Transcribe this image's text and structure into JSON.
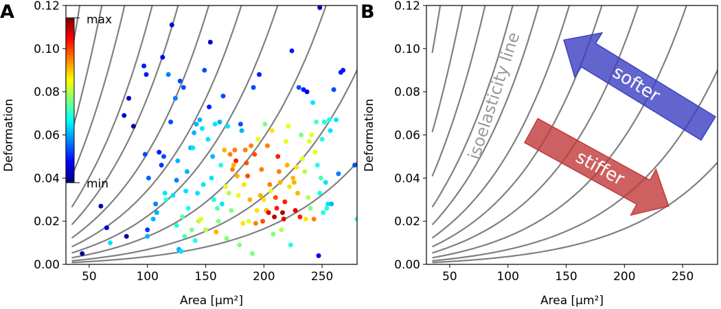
{
  "colors": {
    "isoline": "#7f7f7f",
    "softer_arrow": "#3b3fc0",
    "stiffer_arrow": "#c0393b"
  },
  "chart_data": [
    {
      "panel_label": "A",
      "type": "scatter",
      "xlabel": "Area [µm²]",
      "ylabel": "Deformation",
      "xlim": [
        30,
        280
      ],
      "ylim": [
        0,
        0.12
      ],
      "xticks": [
        "50",
        "100",
        "150",
        "200",
        "250"
      ],
      "xtick_values": [
        50,
        100,
        150,
        200,
        250
      ],
      "yticks": [
        "0.00",
        "0.02",
        "0.04",
        "0.06",
        "0.08",
        "0.10",
        "0.12"
      ],
      "ytick_values": [
        0,
        0.02,
        0.04,
        0.06,
        0.08,
        0.1,
        0.12
      ],
      "grid": false,
      "colorbar": {
        "max_label": "max",
        "min_label": "min",
        "colormap": "jet"
      },
      "isoelasticity_k": [
        4.2e-05,
        8e-05,
        0.00015,
        0.00026,
        0.0004,
        0.0006,
        0.0009,
        0.0013,
        0.002,
        0.003,
        0.0048
      ],
      "points": [
        [
          44,
          0.005,
          0.02
        ],
        [
          60,
          0.027,
          0.05
        ],
        [
          65,
          0.017,
          0.08
        ],
        [
          80,
          0.069,
          0.08
        ],
        [
          82,
          0.013,
          0.04
        ],
        [
          84,
          0.077,
          0.06
        ],
        [
          88,
          0.064,
          0.03
        ],
        [
          97,
          0.092,
          0.15
        ],
        [
          99,
          0.088,
          0.15
        ],
        [
          98,
          0.051,
          0.2
        ],
        [
          100,
          0.016,
          0.18
        ],
        [
          101,
          0.04,
          0.22
        ],
        [
          105,
          0.021,
          0.3
        ],
        [
          107,
          0.028,
          0.25
        ],
        [
          108,
          0.024,
          0.3
        ],
        [
          110,
          0.052,
          0.15
        ],
        [
          112,
          0.046,
          0.18
        ],
        [
          113,
          0.096,
          0.12
        ],
        [
          114,
          0.05,
          0.2
        ],
        [
          115,
          0.033,
          0.35
        ],
        [
          116,
          0.03,
          0.4
        ],
        [
          118,
          0.088,
          0.25
        ],
        [
          120,
          0.066,
          0.2
        ],
        [
          121,
          0.111,
          0.08
        ],
        [
          122,
          0.032,
          0.35
        ],
        [
          124,
          0.077,
          0.25
        ],
        [
          125,
          0.039,
          0.25
        ],
        [
          125,
          0.018,
          0.4
        ],
        [
          126,
          0.048,
          0.3
        ],
        [
          127,
          0.007,
          0.3
        ],
        [
          128,
          0.085,
          0.2
        ],
        [
          129,
          0.006,
          0.35
        ],
        [
          130,
          0.022,
          0.45
        ],
        [
          131,
          0.082,
          0.2
        ],
        [
          132,
          0.013,
          0.45
        ],
        [
          133,
          0.034,
          0.35
        ],
        [
          134,
          0.043,
          0.3
        ],
        [
          135,
          0.026,
          0.4
        ],
        [
          137,
          0.054,
          0.3
        ],
        [
          138,
          0.016,
          0.5
        ],
        [
          139,
          0.054,
          0.35
        ],
        [
          140,
          0.061,
          0.3
        ],
        [
          141,
          0.011,
          0.4
        ],
        [
          142,
          0.065,
          0.3
        ],
        [
          143,
          0.033,
          0.35
        ],
        [
          144,
          0.02,
          0.55
        ],
        [
          145,
          0.067,
          0.3
        ],
        [
          146,
          0.021,
          0.6
        ],
        [
          147,
          0.063,
          0.35
        ],
        [
          148,
          0.037,
          0.35
        ],
        [
          149,
          0.09,
          0.2
        ],
        [
          150,
          0.016,
          0.55
        ],
        [
          152,
          0.058,
          0.35
        ],
        [
          153,
          0.073,
          0.15
        ],
        [
          154,
          0.103,
          0.08
        ],
        [
          155,
          0.04,
          0.35
        ],
        [
          156,
          0.05,
          0.3
        ],
        [
          157,
          0.03,
          0.4
        ],
        [
          158,
          0.065,
          0.35
        ],
        [
          159,
          0.015,
          0.7
        ],
        [
          160,
          0.026,
          0.45
        ],
        [
          161,
          0.02,
          0.5
        ],
        [
          162,
          0.066,
          0.3
        ],
        [
          163,
          0.046,
          0.4
        ],
        [
          164,
          0.028,
          0.35
        ],
        [
          165,
          0.078,
          0.2
        ],
        [
          166,
          0.053,
          0.7
        ],
        [
          167,
          0.036,
          0.6
        ],
        [
          168,
          0.012,
          0.5
        ],
        [
          169,
          0.064,
          0.35
        ],
        [
          170,
          0.033,
          0.55
        ],
        [
          171,
          0.051,
          0.75
        ],
        [
          172,
          0.025,
          0.5
        ],
        [
          173,
          0.044,
          0.75
        ],
        [
          174,
          0.046,
          0.7
        ],
        [
          175,
          0.053,
          0.75
        ],
        [
          176,
          0.048,
          0.85
        ],
        [
          177,
          0.041,
          0.7
        ],
        [
          178,
          0.032,
          0.6
        ],
        [
          179,
          0.009,
          0.5
        ],
        [
          180,
          0.065,
          0.2
        ],
        [
          181,
          0.062,
          0.3
        ],
        [
          182,
          0.019,
          0.65
        ],
        [
          183,
          0.037,
          0.65
        ],
        [
          184,
          0.053,
          0.75
        ],
        [
          185,
          0.047,
          0.8
        ],
        [
          186,
          0.041,
          0.8
        ],
        [
          187,
          0.02,
          0.6
        ],
        [
          188,
          0.03,
          0.7
        ],
        [
          189,
          0.055,
          0.75
        ],
        [
          190,
          0.005,
          0.5
        ],
        [
          191,
          0.082,
          0.2
        ],
        [
          192,
          0.051,
          0.8
        ],
        [
          193,
          0.019,
          0.75
        ],
        [
          194,
          0.025,
          0.65
        ],
        [
          195,
          0.058,
          0.6
        ],
        [
          196,
          0.088,
          0.15
        ],
        [
          197,
          0.032,
          0.7
        ],
        [
          198,
          0.044,
          0.75
        ],
        [
          199,
          0.02,
          0.8
        ],
        [
          200,
          0.03,
          0.65
        ],
        [
          201,
          0.065,
          0.5
        ],
        [
          202,
          0.025,
          0.7
        ],
        [
          203,
          0.055,
          0.75
        ],
        [
          204,
          0.024,
          0.9
        ],
        [
          205,
          0.037,
          0.75
        ],
        [
          206,
          0.034,
          0.6
        ],
        [
          207,
          0.062,
          0.65
        ],
        [
          208,
          0.014,
          0.5
        ],
        [
          209,
          0.022,
          0.95
        ],
        [
          210,
          0.031,
          0.8
        ],
        [
          211,
          0.026,
          0.85
        ],
        [
          212,
          0.05,
          0.85
        ],
        [
          213,
          0.043,
          0.75
        ],
        [
          214,
          0.038,
          0.7
        ],
        [
          215,
          0.016,
          0.55
        ],
        [
          216,
          0.024,
          0.95
        ],
        [
          217,
          0.021,
          0.9
        ],
        [
          218,
          0.029,
          0.85
        ],
        [
          219,
          0.057,
          0.6
        ],
        [
          220,
          0.046,
          0.7
        ],
        [
          221,
          0.064,
          0.6
        ],
        [
          222,
          0.036,
          0.65
        ],
        [
          223,
          0.009,
          0.4
        ],
        [
          224,
          0.099,
          0.15
        ],
        [
          225,
          0.04,
          0.7
        ],
        [
          226,
          0.038,
          0.7
        ],
        [
          227,
          0.025,
          0.9
        ],
        [
          228,
          0.045,
          0.65
        ],
        [
          229,
          0.033,
          0.7
        ],
        [
          230,
          0.082,
          0.2
        ],
        [
          231,
          0.022,
          0.85
        ],
        [
          232,
          0.06,
          0.5
        ],
        [
          233,
          0.049,
          0.6
        ],
        [
          234,
          0.081,
          0.15
        ],
        [
          235,
          0.043,
          0.55
        ],
        [
          236,
          0.021,
          0.65
        ],
        [
          237,
          0.08,
          0.1
        ],
        [
          238,
          0.031,
          0.55
        ],
        [
          239,
          0.057,
          0.6
        ],
        [
          240,
          0.026,
          0.5
        ],
        [
          241,
          0.06,
          0.6
        ],
        [
          242,
          0.075,
          0.35
        ],
        [
          243,
          0.021,
          0.75
        ],
        [
          244,
          0.052,
          0.6
        ],
        [
          245,
          0.066,
          0.45
        ],
        [
          246,
          0.046,
          0.4
        ],
        [
          247,
          0.004,
          0.1
        ],
        [
          248,
          0.033,
          0.4
        ],
        [
          249,
          0.04,
          0.45
        ],
        [
          250,
          0.058,
          0.4
        ],
        [
          251,
          0.024,
          0.4
        ],
        [
          252,
          0.066,
          0.4
        ],
        [
          253,
          0.038,
          0.35
        ],
        [
          254,
          0.026,
          0.4
        ],
        [
          255,
          0.028,
          0.35
        ],
        [
          256,
          0.067,
          0.4
        ],
        [
          257,
          0.062,
          0.35
        ],
        [
          258,
          0.028,
          0.3
        ],
        [
          260,
          0.081,
          0.2
        ],
        [
          262,
          0.067,
          0.35
        ],
        [
          264,
          0.042,
          0.25
        ],
        [
          266,
          0.089,
          0.15
        ],
        [
          268,
          0.09,
          0.15
        ],
        [
          248,
          0.119,
          0.05
        ],
        [
          278,
          0.046,
          0.2
        ],
        [
          280,
          0.021,
          0.4
        ],
        [
          100,
          0.013,
          0.3
        ],
        [
          68,
          0.01,
          0.35
        ]
      ]
    },
    {
      "panel_label": "B",
      "type": "line",
      "xlabel": "Area [µm²]",
      "ylabel": "Deformation",
      "xlim": [
        30,
        280
      ],
      "ylim": [
        0,
        0.12
      ],
      "xticks": [
        "50",
        "100",
        "150",
        "200",
        "250"
      ],
      "xtick_values": [
        50,
        100,
        150,
        200,
        250
      ],
      "yticks": [
        "0.00",
        "0.02",
        "0.04",
        "0.06",
        "0.08",
        "0.10",
        "0.12"
      ],
      "ytick_values": [
        0,
        0.02,
        0.04,
        0.06,
        0.08,
        0.1,
        0.12
      ],
      "grid": false,
      "isoelasticity_k": [
        4.2e-05,
        8e-05,
        0.00015,
        0.00026,
        0.0004,
        0.0006,
        0.0009,
        0.0013,
        0.002,
        0.003,
        0.0048
      ],
      "annotations": {
        "isoline_label": "isoelasticity line",
        "softer_label": "softer",
        "stiffer_label": "stiffer",
        "softer_arrow": {
          "from": [
            272,
            0.063
          ],
          "to": [
            148,
            0.104
          ]
        },
        "stiffer_arrow": {
          "from": [
            120,
            0.062
          ],
          "to": [
            238,
            0.027
          ]
        }
      }
    }
  ]
}
